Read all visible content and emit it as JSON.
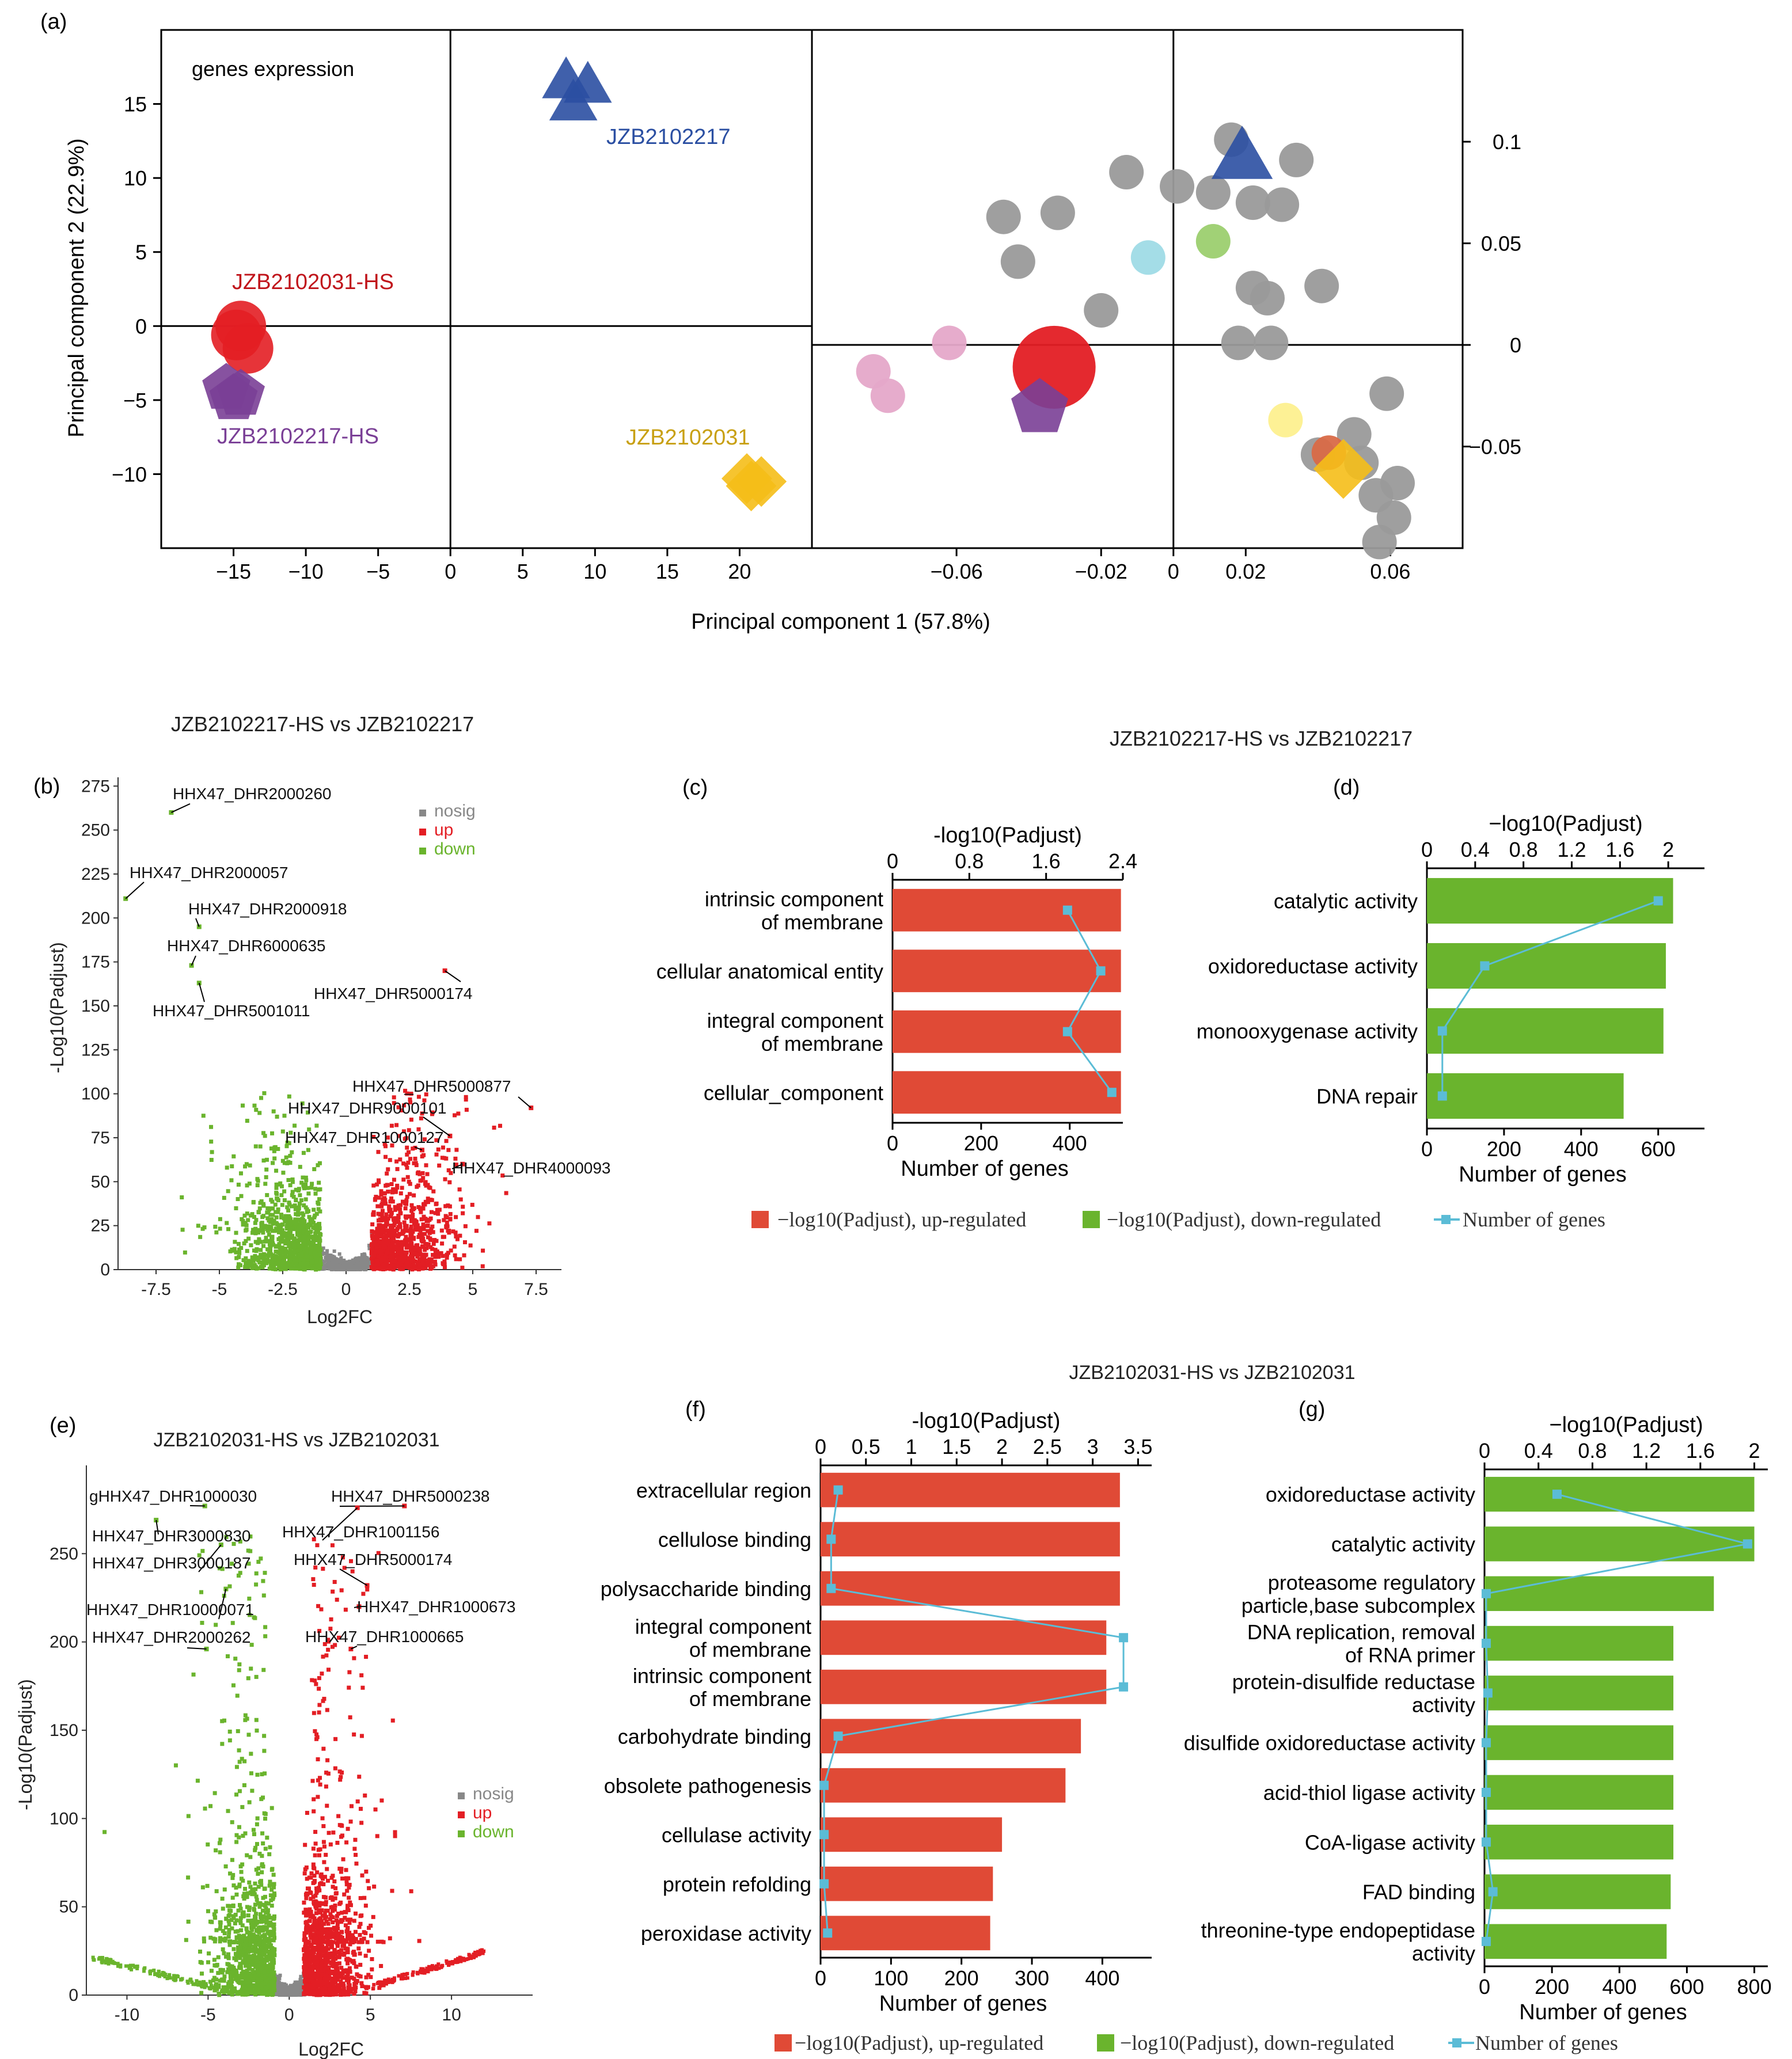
{
  "chart_data": [
    {
      "panel": "(a)",
      "type": "scatter",
      "title": "genes expression",
      "xlabel": "Principal component 1 (57.8%)",
      "ylabel": "Principal component 2 (22.9%)",
      "score_plot": {
        "xlim": [
          -20,
          25
        ],
        "ylim": [
          -15,
          20
        ],
        "xticks": [
          "−15",
          "−10",
          "−5",
          "0",
          "5",
          "10",
          "15",
          "20"
        ],
        "xtick_values": [
          -15,
          -10,
          -5,
          0,
          5,
          10,
          15,
          20
        ],
        "yticks": [
          "15",
          "10",
          "5",
          "0",
          "−5",
          "−10"
        ],
        "ytick_values": [
          15,
          10,
          5,
          0,
          -5,
          -10
        ],
        "groups": [
          {
            "name": "JZB2102031-HS",
            "color": "#e31e24",
            "shape": "circle",
            "points": [
              [
                -14.5,
                0
              ],
              [
                -14,
                -1.5
              ],
              [
                -14.8,
                -0.6
              ]
            ]
          },
          {
            "name": "JZB2102217-HS",
            "color": "#7a3f96",
            "shape": "pentagon",
            "points": [
              [
                -15.5,
                -4.2
              ],
              [
                -14.5,
                -4.6
              ],
              [
                -15,
                -4.9
              ]
            ]
          },
          {
            "name": "JZB2102217",
            "color": "#2b4fa2",
            "shape": "triangle",
            "points": [
              [
                8,
                16.5
              ],
              [
                9.5,
                16.2
              ],
              [
                8.5,
                15
              ]
            ]
          },
          {
            "name": "JZB2102031",
            "color": "#f5be18",
            "shape": "diamond",
            "points": [
              [
                20.5,
                -10.3
              ],
              [
                21.5,
                -10.5
              ],
              [
                20.8,
                -10.8
              ]
            ]
          }
        ]
      },
      "loading_plot": {
        "xlim": [
          -0.1,
          0.08
        ],
        "ylim": [
          -0.1,
          0.155
        ],
        "xticks": [
          "−0.06",
          "−0.02",
          "0",
          "0.02",
          "0.06"
        ],
        "xtick_values": [
          -0.06,
          -0.02,
          0,
          0.02,
          0.06
        ],
        "yticks": [
          "0.1",
          "0.05",
          "0",
          "−0.05"
        ],
        "ytick_values": [
          0.1,
          0.05,
          0,
          -0.05
        ],
        "points": [
          {
            "x": -0.047,
            "y": 0.063,
            "color": "#9a9a9a",
            "size": 1
          },
          {
            "x": -0.032,
            "y": 0.065,
            "color": "#9a9a9a",
            "size": 1
          },
          {
            "x": -0.043,
            "y": 0.041,
            "color": "#9a9a9a",
            "size": 1
          },
          {
            "x": -0.013,
            "y": 0.085,
            "color": "#9a9a9a",
            "size": 1
          },
          {
            "x": 0.001,
            "y": 0.078,
            "color": "#9a9a9a",
            "size": 1
          },
          {
            "x": 0.011,
            "y": 0.075,
            "color": "#9a9a9a",
            "size": 1
          },
          {
            "x": 0.016,
            "y": 0.101,
            "color": "#9a9a9a",
            "size": 1
          },
          {
            "x": 0.034,
            "y": 0.091,
            "color": "#9a9a9a",
            "size": 1
          },
          {
            "x": 0.022,
            "y": 0.07,
            "color": "#9a9a9a",
            "size": 1
          },
          {
            "x": 0.03,
            "y": 0.069,
            "color": "#9a9a9a",
            "size": 1
          },
          {
            "x": -0.02,
            "y": 0.017,
            "color": "#9a9a9a",
            "size": 1
          },
          {
            "x": 0.022,
            "y": 0.028,
            "color": "#9a9a9a",
            "size": 1
          },
          {
            "x": 0.026,
            "y": 0.023,
            "color": "#9a9a9a",
            "size": 1
          },
          {
            "x": 0.041,
            "y": 0.029,
            "color": "#9a9a9a",
            "size": 1
          },
          {
            "x": 0.018,
            "y": 0.001,
            "color": "#9a9a9a",
            "size": 1
          },
          {
            "x": 0.027,
            "y": 0.001,
            "color": "#9a9a9a",
            "size": 1
          },
          {
            "x": 0.059,
            "y": -0.024,
            "color": "#9a9a9a",
            "size": 1
          },
          {
            "x": 0.05,
            "y": -0.044,
            "color": "#9a9a9a",
            "size": 1
          },
          {
            "x": 0.052,
            "y": -0.058,
            "color": "#9a9a9a",
            "size": 1
          },
          {
            "x": 0.04,
            "y": -0.054,
            "color": "#9a9a9a",
            "size": 1
          },
          {
            "x": 0.062,
            "y": -0.068,
            "color": "#9a9a9a",
            "size": 1
          },
          {
            "x": 0.056,
            "y": -0.074,
            "color": "#9a9a9a",
            "size": 1
          },
          {
            "x": 0.061,
            "y": -0.085,
            "color": "#9a9a9a",
            "size": 1
          },
          {
            "x": 0.057,
            "y": -0.097,
            "color": "#9a9a9a",
            "size": 1
          },
          {
            "x": -0.083,
            "y": -0.013,
            "color": "#e5a8c9",
            "size": 1
          },
          {
            "x": -0.079,
            "y": -0.025,
            "color": "#e5a8c9",
            "size": 1
          },
          {
            "x": -0.062,
            "y": 0.001,
            "color": "#e5a8c9",
            "size": 1
          },
          {
            "x": -0.007,
            "y": 0.043,
            "color": "#9fdbe6",
            "size": 1
          },
          {
            "x": 0.011,
            "y": 0.051,
            "color": "#9ccf6f",
            "size": 1
          },
          {
            "x": 0.031,
            "y": -0.037,
            "color": "#fdf08f",
            "size": 1
          },
          {
            "x": -0.033,
            "y": -0.011,
            "color": "#e31e24",
            "size": 3
          },
          {
            "x": 0.043,
            "y": -0.053,
            "color": "#d96a47",
            "size": 1
          }
        ],
        "group_markers": [
          {
            "name": "JZB2102217",
            "x": 0.019,
            "y": 0.092,
            "color": "#2b4fa2",
            "shape": "triangle"
          },
          {
            "name": "JZB2102217-HS",
            "x": -0.037,
            "y": -0.031,
            "color": "#7a3f96",
            "shape": "pentagon"
          },
          {
            "name": "JZB2102031",
            "x": 0.047,
            "y": -0.061,
            "color": "#f5be18",
            "shape": "diamond"
          }
        ]
      }
    },
    {
      "panel": "(b)",
      "type": "scatter",
      "title": "JZB2102217-HS vs JZB2102217",
      "xlabel": "Log2FC",
      "ylabel": "-Log10(Padjust)",
      "xlim": [
        -9,
        8.5
      ],
      "ylim": [
        0,
        280
      ],
      "xticks": [
        "-7.5",
        "-5",
        "-2.5",
        "0",
        "2.5",
        "5",
        "7.5"
      ],
      "xtick_values": [
        -7.5,
        -5,
        -2.5,
        0,
        2.5,
        5,
        7.5
      ],
      "yticks": [
        "275",
        "250",
        "225",
        "200",
        "175",
        "150",
        "125",
        "100",
        "75",
        "50",
        "25",
        "0"
      ],
      "ytick_values": [
        275,
        250,
        225,
        200,
        175,
        150,
        125,
        100,
        75,
        50,
        25,
        0
      ],
      "legend": [
        {
          "label": "nosig",
          "color": "#888888"
        },
        {
          "label": "up",
          "color": "#e31e24"
        },
        {
          "label": "down",
          "color": "#6ab42d"
        }
      ],
      "annotations": [
        {
          "label": "HHX47_DHR2000260",
          "x": -6.9,
          "y": 260
        },
        {
          "label": "HHX47_DHR2000057",
          "x": -8.7,
          "y": 211
        },
        {
          "label": "HHX47_DHR2000918",
          "x": -5.8,
          "y": 195
        },
        {
          "label": "HHX47_DHR6000635",
          "x": -6.1,
          "y": 173
        },
        {
          "label": "HHX47_DHR5000174",
          "x": 3.9,
          "y": 170
        },
        {
          "label": "HHX47_DHR5001011",
          "x": -5.8,
          "y": 163
        },
        {
          "label": "HHX47_DHR5000877",
          "x": 7.3,
          "y": 92
        },
        {
          "label": "HHX47_DHR9000101",
          "x": 4.1,
          "y": 76
        },
        {
          "label": "HHX47_DHR1000127",
          "x": 3.0,
          "y": 68
        },
        {
          "label": "HHX47_DHR4000093",
          "x": 4.6,
          "y": 60
        }
      ]
    },
    {
      "panel": "(c)",
      "type": "bar",
      "title": "JZB2102217-HS vs JZB2102217",
      "top_axis_label": "-log10(Padjust)",
      "top_ticks": [
        "0",
        "0.8",
        "1.6",
        "2.4"
      ],
      "top_tick_values": [
        0,
        0.8,
        1.6,
        2.4
      ],
      "top_lim": [
        0,
        2.4
      ],
      "xlabel": "Number of genes",
      "bottom_ticks": [
        "0",
        "200",
        "400"
      ],
      "bottom_tick_values": [
        0,
        200,
        400
      ],
      "bottom_lim": [
        0,
        520
      ],
      "color": "#e04a36",
      "categories": [
        "intrinsic component|of membrane",
        "cellular anatomical entity",
        "integral component|of membrane",
        "cellular_component"
      ],
      "padjust_values": [
        2.38,
        2.38,
        2.38,
        2.38
      ],
      "number_of_genes": [
        395,
        470,
        395,
        495
      ]
    },
    {
      "panel": "(d)",
      "type": "bar",
      "title": "",
      "top_axis_label": "−log10(Padjust)",
      "top_ticks": [
        "0",
        "0.4",
        "0.8",
        "1.2",
        "1.6",
        "2"
      ],
      "top_tick_values": [
        0,
        0.4,
        0.8,
        1.2,
        1.6,
        2
      ],
      "top_lim": [
        0,
        2.3
      ],
      "xlabel": "Number of genes",
      "bottom_ticks": [
        "0",
        "200",
        "400",
        "600"
      ],
      "bottom_tick_values": [
        0,
        200,
        400,
        600
      ],
      "bottom_lim": [
        0,
        720
      ],
      "color": "#6ab42d",
      "categories": [
        "catalytic activity",
        "oxidoreductase activity",
        "monooxygenase activity",
        "DNA repair"
      ],
      "padjust_values": [
        2.04,
        1.98,
        1.96,
        1.63
      ],
      "number_of_genes": [
        600,
        150,
        40,
        40
      ]
    },
    {
      "panel": "(e)",
      "type": "scatter",
      "title": "JZB2102031-HS vs JZB2102031",
      "xlabel": "Log2FC",
      "ylabel": "-Log10(Padjust)",
      "xlim": [
        -12.5,
        15
      ],
      "ylim": [
        0,
        300
      ],
      "xticks": [
        "-10",
        "-5",
        "0",
        "5",
        "10"
      ],
      "xtick_values": [
        -10,
        -5,
        0,
        5,
        10
      ],
      "yticks": [
        "250",
        "200",
        "150",
        "100",
        "50",
        "0"
      ],
      "ytick_values": [
        250,
        200,
        150,
        100,
        50,
        0
      ],
      "legend": [
        {
          "label": "nosig",
          "color": "#888888"
        },
        {
          "label": "up",
          "color": "#e31e24"
        },
        {
          "label": "down",
          "color": "#6ab42d"
        }
      ],
      "annotations": [
        {
          "label": "gHHX47_DHR1000030",
          "x": -5.2,
          "y": 277
        },
        {
          "label": "HHX47_DHR5000238",
          "x": 7.1,
          "y": 277
        },
        {
          "label": "HHX47_DHR1001156",
          "x": 4.2,
          "y": 276
        },
        {
          "label": "HHX47_DHR3000830",
          "x": -8.2,
          "y": 269
        },
        {
          "label": "HHX47_DHR3000187",
          "x": -4.2,
          "y": 255
        },
        {
          "label": "HHX47_DHR5000174",
          "x": 4.8,
          "y": 232
        },
        {
          "label": "HHX47_DHR10000071",
          "x": -3.9,
          "y": 230
        },
        {
          "label": "HHX47_DHR1000673",
          "x": 4.3,
          "y": 220
        },
        {
          "label": "HHX47_DHR2000262",
          "x": -5.1,
          "y": 196
        },
        {
          "label": "HHX47_DHR1000665",
          "x": 3.8,
          "y": 196
        }
      ]
    },
    {
      "panel": "(f)",
      "type": "bar",
      "title": "JZB2102031-HS vs JZB2102031",
      "top_axis_label": "-log10(Padjust)",
      "top_ticks": [
        "0",
        "0.5",
        "1",
        "1.5",
        "2",
        "2.5",
        "3",
        "3.5"
      ],
      "top_tick_values": [
        0,
        0.5,
        1,
        1.5,
        2,
        2.5,
        3,
        3.5
      ],
      "top_lim": [
        0,
        3.65
      ],
      "xlabel": "Number of genes",
      "bottom_ticks": [
        "0",
        "100",
        "200",
        "300",
        "400"
      ],
      "bottom_tick_values": [
        0,
        100,
        200,
        300,
        400
      ],
      "bottom_lim": [
        0,
        470
      ],
      "color": "#e04a36",
      "categories": [
        "extracellular region",
        "cellulose binding",
        "polysaccharide binding",
        "integral component|of membrane",
        "intrinsic component|of membrane",
        "carbohydrate binding",
        "obsolete pathogenesis",
        "cellulase activity",
        "protein refolding",
        "peroxidase activity"
      ],
      "padjust_values": [
        3.3,
        3.3,
        3.3,
        3.15,
        3.15,
        2.87,
        2.7,
        2.0,
        1.9,
        1.87
      ],
      "number_of_genes": [
        25,
        15,
        15,
        430,
        430,
        25,
        5,
        5,
        5,
        10
      ]
    },
    {
      "panel": "(g)",
      "type": "bar",
      "title": "",
      "top_axis_label": "−log10(Padjust)",
      "top_ticks": [
        "0",
        "0.4",
        "0.8",
        "1.2",
        "1.6",
        "2"
      ],
      "top_tick_values": [
        0,
        0.4,
        0.8,
        1.2,
        1.6,
        2
      ],
      "top_lim": [
        0,
        2.1
      ],
      "xlabel": "Number of genes",
      "bottom_ticks": [
        "0",
        "200",
        "400",
        "600",
        "800"
      ],
      "bottom_tick_values": [
        0,
        200,
        400,
        600,
        800
      ],
      "bottom_lim": [
        0,
        840
      ],
      "color": "#6ab42d",
      "categories": [
        "oxidoreductase activity",
        "catalytic activity",
        "proteasome regulatory|particle,base subcomplex",
        "DNA replication, removal|of RNA primer",
        "protein-disulfide reductase|activity",
        "disulfide oxidoreductase activity",
        "acid-thiol ligase activity",
        "CoA-ligase activity",
        "FAD binding",
        "threonine-type endopeptidase|activity"
      ],
      "padjust_values": [
        2.0,
        2.0,
        1.7,
        1.4,
        1.4,
        1.4,
        1.4,
        1.4,
        1.38,
        1.35
      ],
      "number_of_genes": [
        215,
        780,
        5,
        5,
        10,
        5,
        5,
        5,
        25,
        5
      ]
    }
  ],
  "figure": {
    "panel_labels": [
      "(a)",
      "(b)",
      "(c)",
      "(d)",
      "(e)",
      "(f)",
      "(g)"
    ],
    "header_cd": "JZB2102217-HS vs JZB2102217",
    "header_fg": "JZB2102031-HS vs JZB2102031",
    "legend_bars": [
      {
        "label": "−log10(Padjust), up-regulated",
        "color": "#e04a36",
        "kind": "box"
      },
      {
        "label": "−log10(Padjust), down-regulated",
        "color": "#6ab42d",
        "kind": "box"
      },
      {
        "label": "Number of genes",
        "color": "#5bbcd6",
        "kind": "line"
      }
    ]
  }
}
